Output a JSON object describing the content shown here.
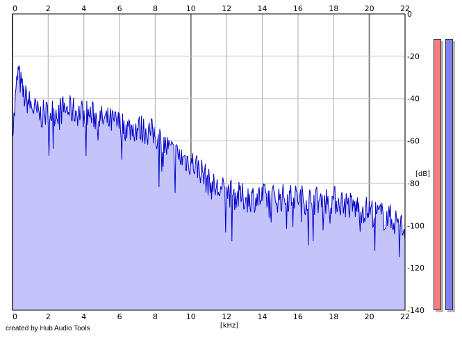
{
  "chart_data": {
    "type": "area",
    "xlabel": "[kHz]",
    "ylabel": "[dB]",
    "xlim": [
      0,
      22
    ],
    "ylim": [
      -140,
      0
    ],
    "x_ticks": [
      "0",
      "2",
      "4",
      "6",
      "8",
      "10",
      "12",
      "14",
      "16",
      "18",
      "20",
      "22"
    ],
    "y_ticks": [
      "0",
      "-20",
      "-40",
      "-60",
      "-80",
      "-100",
      "-120",
      "-140"
    ],
    "grid": true,
    "series": [
      {
        "color": "#0000c8",
        "fill": "#c4c4fa",
        "x": [
          0,
          0.3,
          0.6,
          1.0,
          1.5,
          2.0,
          2.5,
          3.0,
          3.5,
          4.0,
          4.5,
          5.0,
          5.5,
          6.0,
          6.5,
          7.0,
          7.5,
          8.0,
          8.5,
          9.0,
          9.5,
          10.0,
          10.5,
          11.0,
          11.5,
          12.0,
          12.5,
          13.0,
          13.5,
          14.0,
          14.5,
          15.0,
          15.5,
          16.0,
          16.5,
          17.0,
          17.5,
          18.0,
          18.5,
          19.0,
          19.5,
          20.0,
          20.5,
          21.0,
          21.5,
          22.0
        ],
        "y": [
          -58,
          -27,
          -38,
          -43,
          -48,
          -47,
          -46,
          -45,
          -46,
          -47,
          -48,
          -50,
          -51,
          -52,
          -54,
          -54,
          -55,
          -57,
          -62,
          -66,
          -68,
          -70,
          -73,
          -80,
          -83,
          -84,
          -86,
          -87,
          -87,
          -87,
          -87,
          -87,
          -87,
          -87,
          -88,
          -88,
          -88,
          -88,
          -89,
          -91,
          -92,
          -93,
          -95,
          -96,
          -98,
          -102
        ]
      }
    ]
  },
  "meters": {
    "left_color": "#f08080",
    "right_color": "#8080f0"
  },
  "credit": "created by Hub Audio Tools"
}
